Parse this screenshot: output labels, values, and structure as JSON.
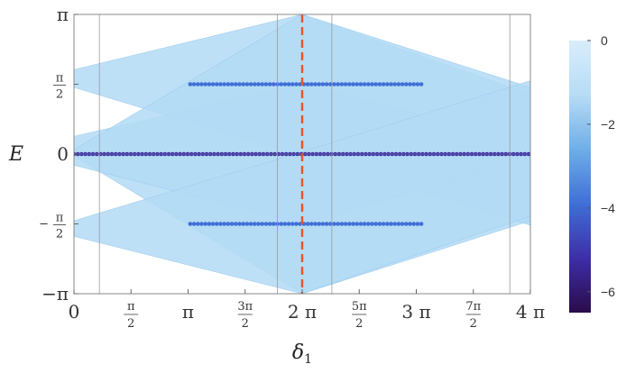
{
  "chart_data": {
    "type": "scatter",
    "title": "",
    "xlabel": "δ1",
    "ylabel": "E",
    "xlim": [
      0,
      12.566
    ],
    "ylim": [
      -3.1416,
      3.1416
    ],
    "x_ticks": [
      {
        "value": 0,
        "label": "0",
        "kind": "whole"
      },
      {
        "value": 1.5708,
        "num": "π",
        "den": "2",
        "kind": "frac"
      },
      {
        "value": 3.1416,
        "label": "π",
        "kind": "whole"
      },
      {
        "value": 4.7124,
        "num": "3π",
        "den": "2",
        "kind": "frac"
      },
      {
        "value": 6.2832,
        "label": "2 π",
        "kind": "whole"
      },
      {
        "value": 7.854,
        "num": "5π",
        "den": "2",
        "kind": "frac"
      },
      {
        "value": 9.4248,
        "label": "3 π",
        "kind": "whole"
      },
      {
        "value": 10.9956,
        "num": "7π",
        "den": "2",
        "kind": "frac"
      },
      {
        "value": 12.566,
        "label": "4 π",
        "kind": "whole"
      }
    ],
    "y_ticks": [
      {
        "value": 3.1416,
        "label": "π",
        "kind": "whole"
      },
      {
        "value": 1.5708,
        "num": "π",
        "den": "2",
        "kind": "frac"
      },
      {
        "value": 0,
        "label": "0",
        "kind": "whole"
      },
      {
        "value": -1.5708,
        "num": "π",
        "den": "2",
        "sign": "−",
        "kind": "frac"
      },
      {
        "value": -3.1416,
        "label": "−π",
        "kind": "whole"
      }
    ],
    "vertical_lines": [
      0.7,
      5.6,
      7.1,
      12.0
    ],
    "marker_line": {
      "x": 6.2832,
      "color": "#e8542a",
      "style": "dashed"
    },
    "bands": [
      {
        "name": "band-1",
        "x": [
          0,
          6.2832,
          12.566
        ],
        "lower": [
          1.5,
          -0.05,
          -1.6
        ],
        "upper": [
          1.9,
          3.14,
          1.35
        ]
      },
      {
        "name": "band-2",
        "x": [
          0,
          6.2832,
          12.566
        ],
        "lower": [
          -0.05,
          -3.14,
          -1.5
        ],
        "upper": [
          0.4,
          1.57,
          0.25
        ]
      },
      {
        "name": "band-3",
        "x": [
          0,
          6.2832,
          12.566
        ],
        "lower": [
          -0.25,
          -1.57,
          -0.1
        ],
        "upper": [
          0.1,
          3.14,
          1.5
        ]
      },
      {
        "name": "band-4",
        "x": [
          0,
          6.2832,
          12.566
        ],
        "lower": [
          -1.85,
          -3.14,
          -1.4
        ],
        "upper": [
          -1.5,
          0.05,
          1.65
        ]
      }
    ],
    "flat_bands": [
      {
        "y": 0,
        "x_range": [
          0,
          12.566
        ],
        "log_value": -5.5
      },
      {
        "y": 1.5708,
        "x_range": [
          3.2,
          9.6
        ],
        "log_value": -4.0
      },
      {
        "y": -1.5708,
        "x_range": [
          3.2,
          9.6
        ],
        "log_value": -4.0
      }
    ],
    "colorbar": {
      "ticks": [
        0,
        -2,
        -4,
        -6
      ],
      "range": [
        -6.5,
        0
      ],
      "colors": [
        "#2a0b4a",
        "#3d2ea7",
        "#3f6fd6",
        "#6faee8",
        "#b6dcf5",
        "#d9edfb"
      ]
    },
    "colors": {
      "band": "#b3daf5",
      "band_edge": "#9fcdf0",
      "frame": "#888888"
    }
  }
}
